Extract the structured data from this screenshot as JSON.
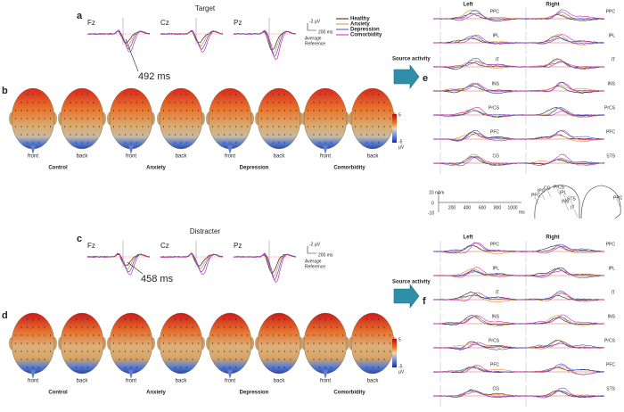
{
  "panels": {
    "a": {
      "label": "a",
      "title": "Target",
      "channels": [
        "Fz",
        "Cz",
        "Pz"
      ],
      "annotation": "492 ms"
    },
    "b": {
      "label": "b"
    },
    "c": {
      "label": "c",
      "title": "Distracter",
      "channels": [
        "Fz",
        "Cz",
        "Pz"
      ],
      "annotation": "458 ms"
    },
    "d": {
      "label": "d"
    },
    "e": {
      "label": "e",
      "arrow": "Source activity"
    },
    "f": {
      "label": "f",
      "arrow": "Source activity"
    }
  },
  "erp_scale": {
    "amplitude": "-2 µV",
    "time": "200 ms",
    "reference": [
      "Average",
      "Reference"
    ]
  },
  "legend": [
    "Healthy",
    "Anxiety",
    "Depression",
    "Comorbidity"
  ],
  "topomaps": {
    "views": [
      "front",
      "back"
    ],
    "groups": [
      "Control",
      "Anxiety",
      "Depression",
      "Comorbidity"
    ],
    "colorbar": {
      "max": "5",
      "min": "-5",
      "unit": "µV"
    }
  },
  "source": {
    "sides": [
      "Left",
      "Right"
    ],
    "left_regions": [
      "PPC",
      "IPL",
      "IT",
      "INS",
      "PrCS",
      "PFC",
      "CG"
    ],
    "right_regions": [
      "PPC",
      "IPL",
      "IT",
      "INS",
      "PrCS",
      "PFC",
      "STS"
    ],
    "scale": {
      "amplitude": "10 nAm",
      "zero": "0",
      "negative": "-10",
      "times": [
        "200",
        "400",
        "600",
        "800",
        "1000"
      ],
      "unit": "ms"
    },
    "brain_labels": [
      "PFC",
      "CG",
      "IPS",
      "PrCS",
      "IPL",
      "INS",
      "STS",
      "IT",
      "PPC"
    ]
  }
}
